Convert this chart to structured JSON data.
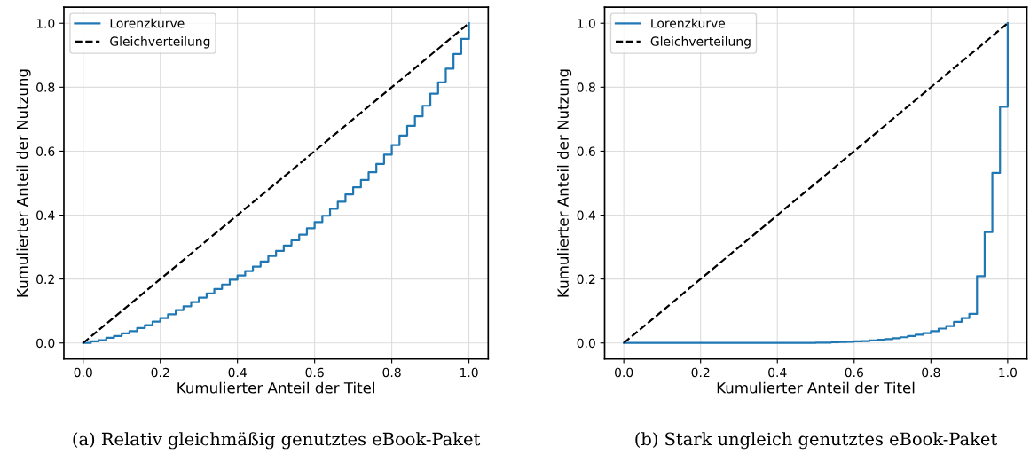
{
  "chart_data": [
    {
      "type": "step",
      "xlabel": "Kumulierter Anteil der Titel",
      "ylabel": "Kumulierter Anteil der Nutzung",
      "annotations": [
        "(a) Relativ gleichmäßig genutztes eBook-Paket"
      ],
      "xlim": [
        -0.05,
        1.05
      ],
      "ylim": [
        -0.05,
        1.05
      ],
      "xticks": [
        {
          "value": 0,
          "label": "0.0"
        },
        {
          "value": 0.2,
          "label": "0.2"
        },
        {
          "value": 0.4,
          "label": "0.4"
        },
        {
          "value": 0.6,
          "label": "0.6"
        },
        {
          "value": 0.8,
          "label": "0.8"
        },
        {
          "value": 1,
          "label": "1.0"
        }
      ],
      "yticks": [
        {
          "value": 0,
          "label": "0.0"
        },
        {
          "value": 0.2,
          "label": "0.2"
        },
        {
          "value": 0.4,
          "label": "0.4"
        },
        {
          "value": 0.6,
          "label": "0.6"
        },
        {
          "value": 0.8,
          "label": "0.8"
        },
        {
          "value": 1,
          "label": "1.0"
        }
      ],
      "grid": true,
      "legend": "top left",
      "series": [
        {
          "name": "Lorenzkurve",
          "color": "#1f77b4",
          "line_style": "solid",
          "x": [
            0,
            0.02,
            0.04,
            0.06,
            0.08,
            0.1,
            0.12,
            0.14,
            0.16,
            0.18,
            0.2,
            0.22,
            0.24,
            0.26,
            0.28,
            0.3,
            0.32,
            0.34,
            0.36,
            0.38,
            0.4,
            0.42,
            0.44,
            0.46,
            0.48,
            0.5,
            0.52,
            0.54,
            0.56,
            0.58,
            0.6,
            0.62,
            0.64,
            0.66,
            0.68,
            0.7,
            0.72,
            0.74,
            0.76,
            0.78,
            0.8,
            0.82,
            0.84,
            0.86,
            0.88,
            0.9,
            0.92,
            0.94,
            0.96,
            0.98,
            1.0
          ],
          "values": [
            0,
            0.005,
            0.009,
            0.016,
            0.022,
            0.03,
            0.037,
            0.047,
            0.056,
            0.067,
            0.078,
            0.09,
            0.103,
            0.115,
            0.128,
            0.142,
            0.155,
            0.169,
            0.183,
            0.198,
            0.211,
            0.225,
            0.239,
            0.255,
            0.272,
            0.288,
            0.305,
            0.321,
            0.339,
            0.359,
            0.378,
            0.398,
            0.42,
            0.442,
            0.465,
            0.487,
            0.51,
            0.534,
            0.56,
            0.589,
            0.619,
            0.649,
            0.679,
            0.709,
            0.742,
            0.78,
            0.815,
            0.858,
            0.904,
            0.951,
            1.0
          ]
        },
        {
          "name": "Gleichverteilung",
          "type": "line",
          "color": "#000000",
          "line_style": "dashed",
          "x": [
            0,
            1
          ],
          "values": [
            0,
            1
          ]
        }
      ]
    },
    {
      "type": "step",
      "xlabel": "Kumulierter Anteil der Titel",
      "ylabel": "Kumulierter Anteil der Nutzung",
      "annotations": [
        "(b) Stark ungleich genutztes eBook-Paket"
      ],
      "xlim": [
        -0.05,
        1.05
      ],
      "ylim": [
        -0.05,
        1.05
      ],
      "xticks": [
        {
          "value": 0,
          "label": "0.0"
        },
        {
          "value": 0.2,
          "label": "0.2"
        },
        {
          "value": 0.4,
          "label": "0.4"
        },
        {
          "value": 0.6,
          "label": "0.6"
        },
        {
          "value": 0.8,
          "label": "0.8"
        },
        {
          "value": 1,
          "label": "1.0"
        }
      ],
      "yticks": [
        {
          "value": 0,
          "label": "0.0"
        },
        {
          "value": 0.2,
          "label": "0.2"
        },
        {
          "value": 0.4,
          "label": "0.4"
        },
        {
          "value": 0.6,
          "label": "0.6"
        },
        {
          "value": 0.8,
          "label": "0.8"
        },
        {
          "value": 1,
          "label": "1.0"
        }
      ],
      "grid": true,
      "legend": "top left",
      "series": [
        {
          "name": "Lorenzkurve",
          "color": "#1f77b4",
          "line_style": "solid",
          "x": [
            0,
            0.02,
            0.04,
            0.06,
            0.08,
            0.1,
            0.12,
            0.14,
            0.16,
            0.18,
            0.2,
            0.22,
            0.24,
            0.26,
            0.28,
            0.3,
            0.32,
            0.34,
            0.36,
            0.38,
            0.4,
            0.42,
            0.44,
            0.46,
            0.48,
            0.5,
            0.52,
            0.54,
            0.56,
            0.58,
            0.6,
            0.62,
            0.64,
            0.66,
            0.68,
            0.7,
            0.72,
            0.74,
            0.76,
            0.78,
            0.8,
            0.82,
            0.84,
            0.86,
            0.88,
            0.9,
            0.92,
            0.94,
            0.96,
            0.98,
            1.0
          ],
          "values": [
            0,
            0,
            0,
            0,
            0,
            0,
            0,
            0,
            0,
            0,
            0,
            0,
            0,
            0,
            0,
            0,
            0,
            0,
            0,
            0,
            0,
            0,
            0,
            0,
            0,
            0.001,
            0.001,
            0.002,
            0.003,
            0.004,
            0.005,
            0.006,
            0.008,
            0.01,
            0.012,
            0.015,
            0.018,
            0.022,
            0.026,
            0.031,
            0.037,
            0.045,
            0.053,
            0.066,
            0.078,
            0.091,
            0.209,
            0.347,
            0.532,
            0.739,
            1.0
          ]
        },
        {
          "name": "Gleichverteilung",
          "type": "line",
          "color": "#000000",
          "line_style": "dashed",
          "x": [
            0,
            1
          ],
          "values": [
            0,
            1
          ]
        }
      ]
    }
  ]
}
